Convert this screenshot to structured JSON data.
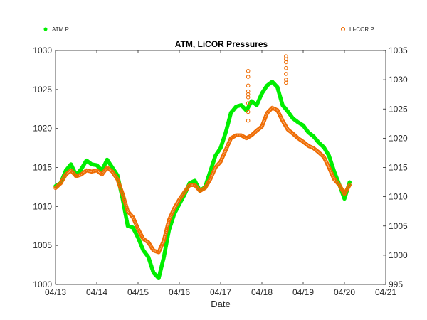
{
  "chart_data": {
    "type": "line",
    "title": "ATM, LiCOR Pressures",
    "xlabel": "Date",
    "ylabel_left": "",
    "ylabel_right": "",
    "x_ticks": [
      "04/13",
      "04/14",
      "04/15",
      "04/16",
      "04/17",
      "04/18",
      "04/19",
      "04/20",
      "04/21"
    ],
    "x_range": [
      "04/13",
      "04/21"
    ],
    "y_left_ticks": [
      1000,
      1005,
      1010,
      1015,
      1020,
      1025,
      1030
    ],
    "y_left_range": [
      1000,
      1030
    ],
    "y_right_ticks": [
      995,
      1000,
      1005,
      1010,
      1015,
      1020,
      1025,
      1030,
      1035
    ],
    "y_right_range": [
      995,
      1035
    ],
    "grid": false,
    "legend_left": "top-left",
    "legend_right": "top-right",
    "series": [
      {
        "name": "ATM P",
        "axis": "left",
        "color": "#00ee00",
        "marker": "filled-dot",
        "points": [
          [
            "04/13 00:00",
            1012.6
          ],
          [
            "04/13 03:00",
            1013.0
          ],
          [
            "04/13 06:00",
            1014.6
          ],
          [
            "04/13 09:00",
            1015.4
          ],
          [
            "04/13 12:00",
            1014.0
          ],
          [
            "04/13 15:00",
            1014.8
          ],
          [
            "04/13 18:00",
            1015.9
          ],
          [
            "04/13 21:00",
            1015.4
          ],
          [
            "04/14 00:00",
            1015.3
          ],
          [
            "04/14 03:00",
            1014.6
          ],
          [
            "04/14 06:00",
            1016.0
          ],
          [
            "04/14 09:00",
            1015.0
          ],
          [
            "04/14 12:00",
            1014.0
          ],
          [
            "04/14 15:00",
            1011.0
          ],
          [
            "04/14 18:00",
            1007.5
          ],
          [
            "04/14 21:00",
            1007.3
          ],
          [
            "04/15 00:00",
            1006.0
          ],
          [
            "04/15 03:00",
            1004.4
          ],
          [
            "04/15 06:00",
            1003.5
          ],
          [
            "04/15 09:00",
            1001.5
          ],
          [
            "04/15 12:00",
            1000.8
          ],
          [
            "04/15 15:00",
            1003.5
          ],
          [
            "04/15 18:00",
            1007.0
          ],
          [
            "04/15 21:00",
            1009.0
          ],
          [
            "04/16 00:00",
            1010.3
          ],
          [
            "04/16 03:00",
            1011.5
          ],
          [
            "04/16 06:00",
            1013.0
          ],
          [
            "04/16 09:00",
            1013.3
          ],
          [
            "04/16 12:00",
            1012.0
          ],
          [
            "04/16 15:00",
            1012.5
          ],
          [
            "04/16 18:00",
            1014.5
          ],
          [
            "04/16 21:00",
            1016.5
          ],
          [
            "04/17 00:00",
            1017.5
          ],
          [
            "04/17 03:00",
            1019.5
          ],
          [
            "04/17 06:00",
            1022.0
          ],
          [
            "04/17 09:00",
            1022.8
          ],
          [
            "04/17 12:00",
            1023.0
          ],
          [
            "04/17 15:00",
            1022.3
          ],
          [
            "04/17 18:00",
            1023.5
          ],
          [
            "04/17 21:00",
            1023.0
          ],
          [
            "04/18 00:00",
            1024.5
          ],
          [
            "04/18 03:00",
            1025.5
          ],
          [
            "04/18 06:00",
            1026.0
          ],
          [
            "04/18 09:00",
            1025.3
          ],
          [
            "04/18 12:00",
            1023.0
          ],
          [
            "04/18 15:00",
            1022.2
          ],
          [
            "04/18 18:00",
            1021.3
          ],
          [
            "04/18 21:00",
            1020.8
          ],
          [
            "04/19 00:00",
            1020.4
          ],
          [
            "04/19 03:00",
            1019.5
          ],
          [
            "04/19 06:00",
            1019.0
          ],
          [
            "04/19 09:00",
            1018.2
          ],
          [
            "04/19 12:00",
            1017.6
          ],
          [
            "04/19 15:00",
            1016.5
          ],
          [
            "04/19 18:00",
            1014.5
          ],
          [
            "04/19 21:00",
            1012.8
          ],
          [
            "04/20 00:00",
            1011.0
          ],
          [
            "04/20 03:00",
            1013.1
          ]
        ]
      },
      {
        "name": "LI-COR P",
        "axis": "right",
        "color": "#ee6a00",
        "marker": "open-circle",
        "points": [
          [
            "04/13 00:00",
            1011.5
          ],
          [
            "04/13 03:00",
            1012.3
          ],
          [
            "04/13 06:00",
            1013.8
          ],
          [
            "04/13 09:00",
            1014.5
          ],
          [
            "04/13 12:00",
            1013.5
          ],
          [
            "04/13 15:00",
            1013.8
          ],
          [
            "04/13 18:00",
            1014.5
          ],
          [
            "04/13 21:00",
            1014.3
          ],
          [
            "04/14 00:00",
            1014.5
          ],
          [
            "04/14 03:00",
            1013.8
          ],
          [
            "04/14 06:00",
            1015.0
          ],
          [
            "04/14 09:00",
            1014.3
          ],
          [
            "04/14 12:00",
            1013.0
          ],
          [
            "04/14 15:00",
            1010.5
          ],
          [
            "04/14 18:00",
            1007.5
          ],
          [
            "04/14 21:00",
            1006.5
          ],
          [
            "04/15 00:00",
            1004.5
          ],
          [
            "04/15 03:00",
            1002.8
          ],
          [
            "04/15 06:00",
            1002.2
          ],
          [
            "04/15 09:00",
            1000.8
          ],
          [
            "04/15 12:00",
            1000.5
          ],
          [
            "04/15 15:00",
            1002.5
          ],
          [
            "04/15 18:00",
            1006.0
          ],
          [
            "04/15 21:00",
            1008.0
          ],
          [
            "04/16 00:00",
            1009.5
          ],
          [
            "04/16 03:00",
            1010.8
          ],
          [
            "04/16 06:00",
            1012.0
          ],
          [
            "04/16 09:00",
            1012.0
          ],
          [
            "04/16 12:00",
            1011.0
          ],
          [
            "04/16 15:00",
            1011.5
          ],
          [
            "04/16 18:00",
            1013.0
          ],
          [
            "04/16 21:00",
            1015.0
          ],
          [
            "04/17 00:00",
            1016.0
          ],
          [
            "04/17 03:00",
            1018.0
          ],
          [
            "04/17 06:00",
            1020.0
          ],
          [
            "04/17 09:00",
            1020.5
          ],
          [
            "04/17 12:00",
            1020.5
          ],
          [
            "04/17 15:00",
            1020.0
          ],
          [
            "04/17 18:00",
            1020.5
          ],
          [
            "04/17 21:00",
            1021.3
          ],
          [
            "04/18 00:00",
            1022.0
          ],
          [
            "04/18 03:00",
            1024.3
          ],
          [
            "04/18 06:00",
            1025.2
          ],
          [
            "04/18 09:00",
            1024.8
          ],
          [
            "04/18 12:00",
            1023.0
          ],
          [
            "04/18 15:00",
            1021.5
          ],
          [
            "04/18 18:00",
            1020.8
          ],
          [
            "04/18 21:00",
            1020.0
          ],
          [
            "04/19 00:00",
            1019.4
          ],
          [
            "04/19 03:00",
            1018.7
          ],
          [
            "04/19 06:00",
            1018.3
          ],
          [
            "04/19 09:00",
            1017.6
          ],
          [
            "04/19 12:00",
            1016.8
          ],
          [
            "04/19 15:00",
            1015.0
          ],
          [
            "04/19 18:00",
            1013.0
          ],
          [
            "04/19 21:00",
            1012.0
          ],
          [
            "04/20 00:00",
            1010.5
          ],
          [
            "04/20 03:00",
            1012.0
          ]
        ],
        "outliers": [
          [
            "04/17 16:00",
            1031.5
          ],
          [
            "04/17 16:00",
            1030.5
          ],
          [
            "04/17 16:00",
            1029.0
          ],
          [
            "04/17 16:00",
            1028.0
          ],
          [
            "04/17 16:00",
            1027.5
          ],
          [
            "04/17 16:00",
            1027.0
          ],
          [
            "04/17 16:00",
            1026.0
          ],
          [
            "04/17 16:00",
            1024.5
          ],
          [
            "04/17 16:00",
            1023.0
          ],
          [
            "04/18 14:00",
            1034.0
          ],
          [
            "04/18 14:00",
            1033.5
          ],
          [
            "04/18 14:00",
            1033.0
          ],
          [
            "04/18 14:00",
            1032.0
          ],
          [
            "04/18 14:00",
            1031.0
          ],
          [
            "04/18 14:00",
            1030.0
          ],
          [
            "04/18 14:00",
            1029.5
          ]
        ]
      }
    ]
  }
}
